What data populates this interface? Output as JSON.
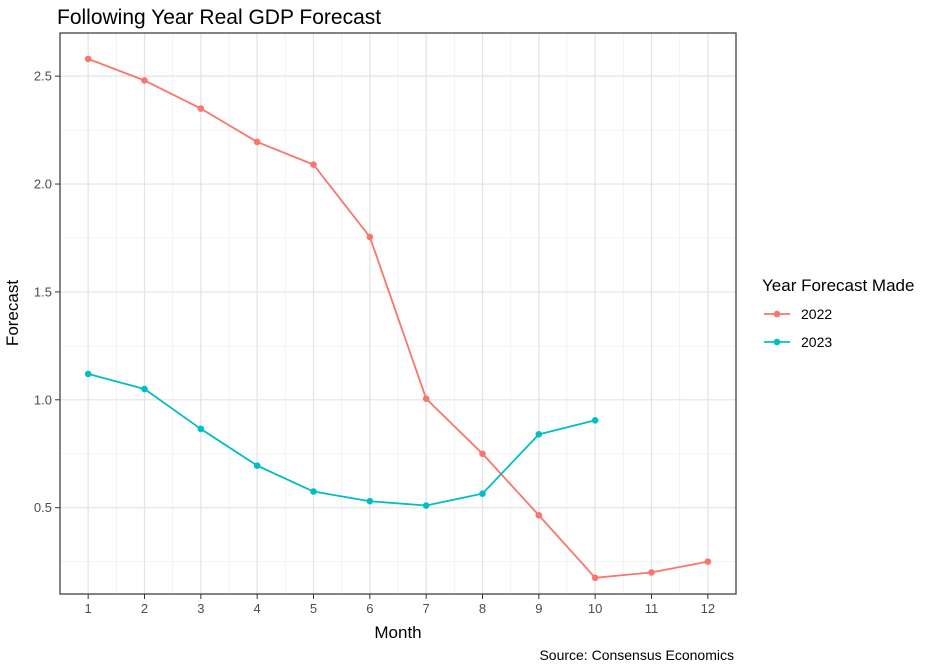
{
  "chart_data": {
    "type": "line",
    "title": "Following Year Real GDP Forecast",
    "xlabel": "Month",
    "ylabel": "Forecast",
    "caption": "Source: Consensus Economics",
    "legend_title": "Year Forecast Made",
    "legend_position": "right",
    "xlim": [
      0.5,
      12.5
    ],
    "ylim": [
      0.1,
      2.7
    ],
    "x_ticks": [
      1,
      2,
      3,
      4,
      5,
      6,
      7,
      8,
      9,
      10,
      11,
      12
    ],
    "y_ticks": [
      0.5,
      1.0,
      1.5,
      2.0,
      2.5
    ],
    "y_tick_labels": [
      "0.5",
      "1.0",
      "1.5",
      "2.0",
      "2.5"
    ],
    "grid": true,
    "series": [
      {
        "name": "2022",
        "color": "#F8766D",
        "x": [
          1,
          2,
          3,
          4,
          5,
          6,
          7,
          8,
          9,
          10,
          11,
          12
        ],
        "values": [
          2.58,
          2.48,
          2.35,
          2.195,
          2.09,
          1.755,
          1.005,
          0.75,
          0.465,
          0.175,
          0.2,
          0.25
        ]
      },
      {
        "name": "2023",
        "color": "#00BFC4",
        "x": [
          1,
          2,
          3,
          4,
          5,
          6,
          7,
          8,
          9,
          10
        ],
        "values": [
          1.12,
          1.05,
          0.865,
          0.695,
          0.575,
          0.53,
          0.51,
          0.565,
          0.84,
          0.905
        ]
      }
    ]
  }
}
